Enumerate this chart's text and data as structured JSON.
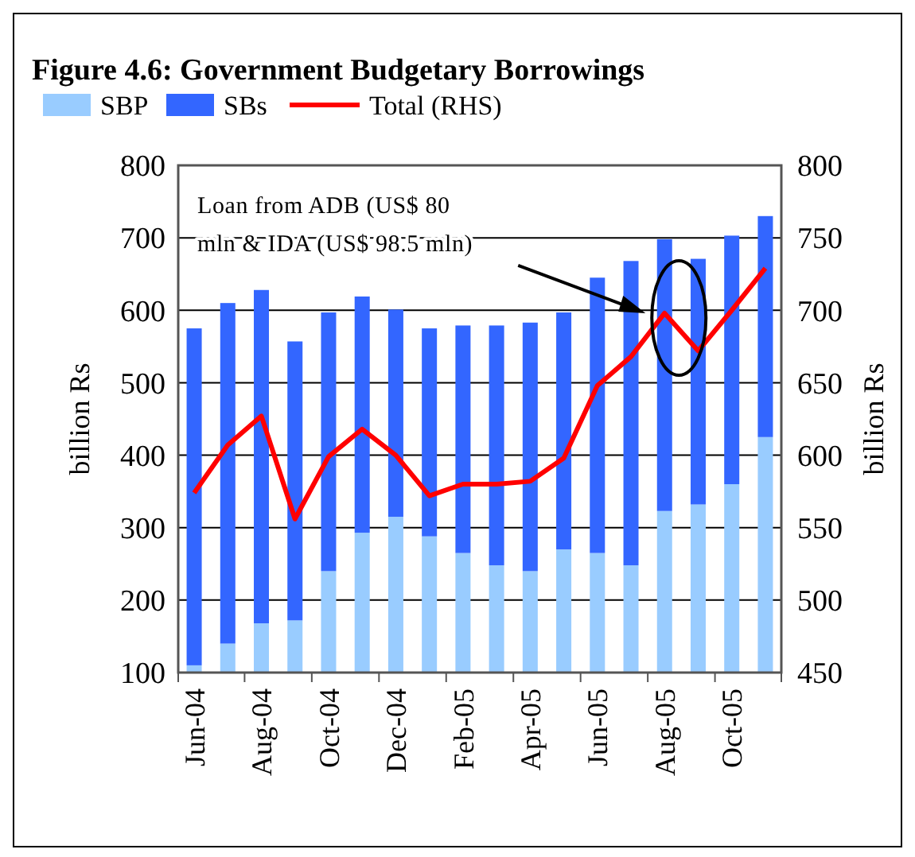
{
  "chart_data": {
    "type": "bar",
    "title": "Figure 4.6: Government Budgetary Borrowings",
    "ylabel": "billion Rs",
    "y2label": "billion Rs",
    "categories": [
      "Jun-04",
      null,
      "Aug-04",
      null,
      "Oct-04",
      null,
      "Dec-04",
      null,
      "Feb-05",
      null,
      "Apr-05",
      null,
      "Jun-05",
      null,
      "Aug-05",
      null,
      "Oct-05",
      null
    ],
    "stacked": true,
    "series": [
      {
        "name": "SBP",
        "color": "#99ccff",
        "values": [
          110,
          140,
          168,
          172,
          240,
          293,
          315,
          288,
          265,
          248,
          240,
          270,
          265,
          248,
          323,
          332,
          360,
          425
        ]
      },
      {
        "name": "SBs",
        "color": "#3366ff",
        "values": [
          465,
          470,
          460,
          385,
          357,
          326,
          286,
          287,
          314,
          331,
          343,
          327,
          380,
          420,
          375,
          339,
          343,
          305
        ]
      },
      {
        "name": "Total (RHS)",
        "type": "line",
        "axis": "y2",
        "color": "#ff0000",
        "values": [
          574,
          607,
          627,
          556,
          599,
          618,
          600,
          572,
          580,
          580,
          582,
          598,
          648,
          668,
          698,
          672,
          700,
          729
        ]
      }
    ],
    "ylim": [
      100,
      800
    ],
    "yticks": [
      100,
      200,
      300,
      400,
      500,
      600,
      700,
      800
    ],
    "y2lim": [
      450,
      800
    ],
    "y2ticks": [
      450,
      500,
      550,
      600,
      650,
      700,
      750,
      800
    ],
    "grid": "y",
    "legend": "top left",
    "marker": "none",
    "line_style": "solid",
    "annotations": [
      "Loan from ADB (US$ 80 mln & IDA (US$ 98.5 mln)"
    ]
  }
}
